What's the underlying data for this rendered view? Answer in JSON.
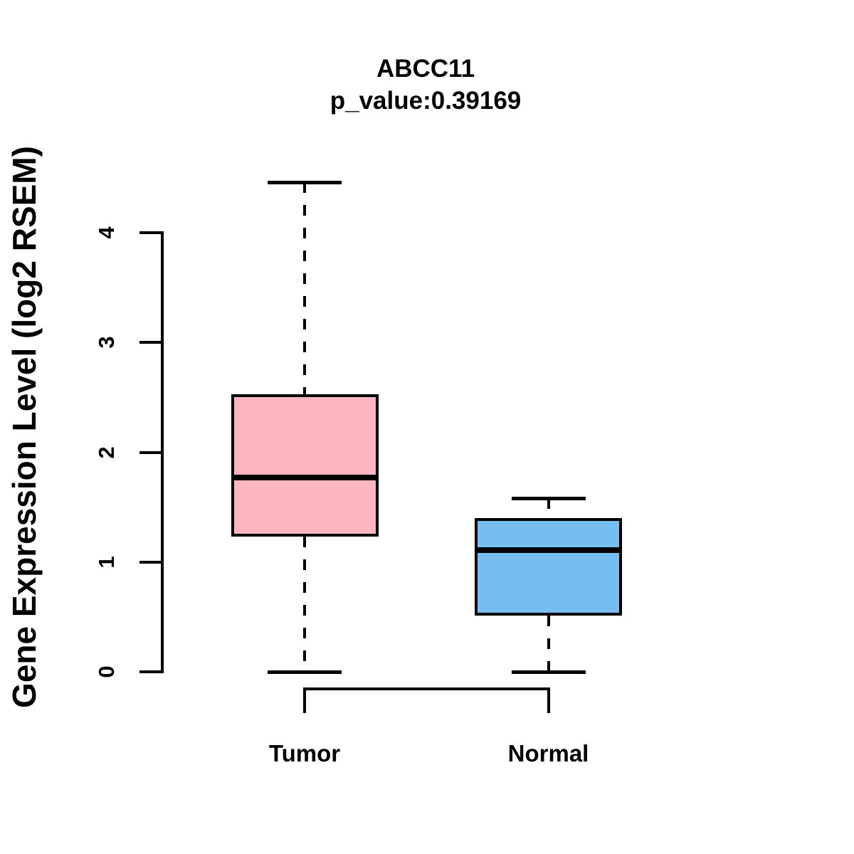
{
  "title": {
    "gene": "ABCC11",
    "p_value": "p_value:0.39169"
  },
  "y_axis": {
    "label": "Gene Expression Level (log2 RSEM)"
  },
  "colors": {
    "tumor_fill": "#FFB6C1",
    "normal_fill": "#76BDF2",
    "line": "#000000",
    "background": "#FFFFFF"
  },
  "chart_data": {
    "type": "boxplot",
    "title": "ABCC11",
    "subtitle": "p_value:0.39169",
    "ylabel": "Gene Expression Level (log2 RSEM)",
    "xlabel": "",
    "ylim": [
      0,
      4.6
    ],
    "yticks": [
      0,
      1,
      2,
      3,
      4
    ],
    "grid": false,
    "legend": "none",
    "groups": [
      {
        "label": "Tumor",
        "fill": "#FFB6C1",
        "whisker_low": 0,
        "q1": 1.23,
        "median": 1.77,
        "q3": 2.53,
        "whisker_high": 4.46
      },
      {
        "label": "Normal",
        "fill": "#76BDF2",
        "whisker_low": 0,
        "q1": 0.51,
        "median": 1.11,
        "q3": 1.4,
        "whisker_high": 1.58
      }
    ]
  }
}
